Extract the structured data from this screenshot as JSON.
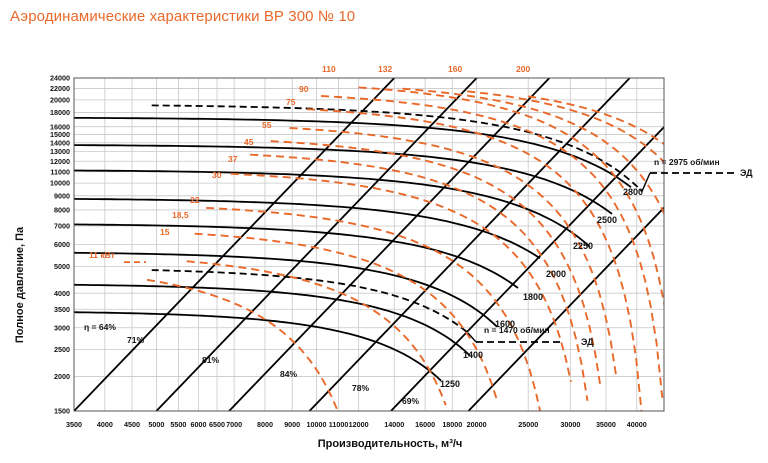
{
  "page": {
    "title": "Аэродинамические характеристики ВР 300 № 10"
  },
  "colors": {
    "accent": "#e8692a",
    "curve": "#000000",
    "grid": "#c8c8c8"
  },
  "chart_data": {
    "type": "line",
    "title": "Аэродинамические характеристики ВР 300 № 10",
    "xlabel": "Производительность, м³/ч",
    "ylabel": "Полное давление, Па",
    "xscale": "log",
    "yscale": "log",
    "xlim": [
      3500,
      45000
    ],
    "ylim": [
      1500,
      24000
    ],
    "grid": true,
    "x_ticks": [
      3500,
      4000,
      4500,
      5000,
      5500,
      6000,
      6500,
      7000,
      8000,
      9000,
      10000,
      11000,
      12000,
      14000,
      16000,
      18000,
      20000,
      25000,
      30000,
      35000,
      40000
    ],
    "y_ticks": [
      1500,
      2000,
      2500,
      3000,
      3500,
      4000,
      5000,
      6000,
      7000,
      8000,
      9000,
      10000,
      11000,
      12000,
      13000,
      14000,
      15000,
      16000,
      18000,
      20000,
      22000,
      24000
    ],
    "speed_lines": [
      {
        "label": "n = 2975 об/мин",
        "motor_label": "ЭД",
        "rpm": 2975
      },
      {
        "label": "n = 1470 об/мин",
        "motor_label": "ЭД",
        "rpm": 1470
      }
    ],
    "rpm_curves": [
      {
        "label": "2800",
        "shutoff_pressure": 17300
      },
      {
        "label": "2500",
        "shutoff_pressure": 13800
      },
      {
        "label": "2250",
        "shutoff_pressure": 11180
      },
      {
        "label": "2000",
        "shutoff_pressure": 8830
      },
      {
        "label": "1800",
        "shutoff_pressure": 7150
      },
      {
        "label": "1600",
        "shutoff_pressure": 5650
      },
      {
        "label": "1400",
        "shutoff_pressure": 4330
      },
      {
        "label": "1250",
        "shutoff_pressure": 3450
      }
    ],
    "efficiency_lines": [
      {
        "label": "η = 64%",
        "value": 64
      },
      {
        "label": "71%",
        "value": 71
      },
      {
        "label": "81%",
        "value": 81
      },
      {
        "label": "84%",
        "value": 84
      },
      {
        "label": "78%",
        "value": 78
      },
      {
        "label": "69%",
        "value": 69
      }
    ],
    "power_labels": [
      "11 кВт",
      "15",
      "18,5",
      "22",
      "30",
      "37",
      "45",
      "55",
      "75",
      "90",
      "110",
      "132",
      "160",
      "200"
    ]
  }
}
